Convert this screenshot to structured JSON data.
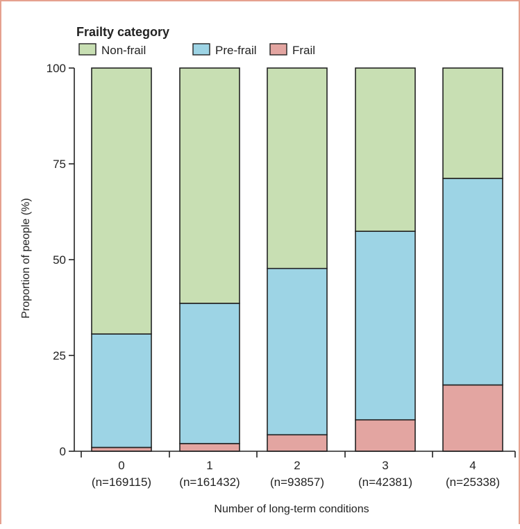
{
  "chart_data": {
    "type": "bar",
    "stacked": true,
    "legend_title": "Frailty category",
    "legend_position": "top-left",
    "categories": [
      "0",
      "1",
      "2",
      "3",
      "4"
    ],
    "category_counts": [
      "(n=169115)",
      "(n=161432)",
      "(n=93857)",
      "(n=42381)",
      "(n=25338)"
    ],
    "series": [
      {
        "name": "Frail",
        "color": "#e3a5a1",
        "values": [
          1,
          2,
          4.3,
          8.2,
          17.3
        ]
      },
      {
        "name": "Pre-frail",
        "color": "#9dd4e5",
        "values": [
          29.6,
          36.6,
          43.4,
          49.2,
          53.9
        ]
      },
      {
        "name": "Non-frail",
        "color": "#c8dfb3",
        "values": [
          69.4,
          61.4,
          52.3,
          42.6,
          28.8
        ]
      }
    ],
    "legend_order": [
      "Non-frail",
      "Pre-frail",
      "Frail"
    ],
    "xlabel": "Number of long-term conditions",
    "ylabel": "Proportion of people (%)",
    "ylim": [
      0,
      100
    ],
    "yticks": [
      "0",
      "25",
      "50",
      "75",
      "100"
    ],
    "grid": false
  }
}
